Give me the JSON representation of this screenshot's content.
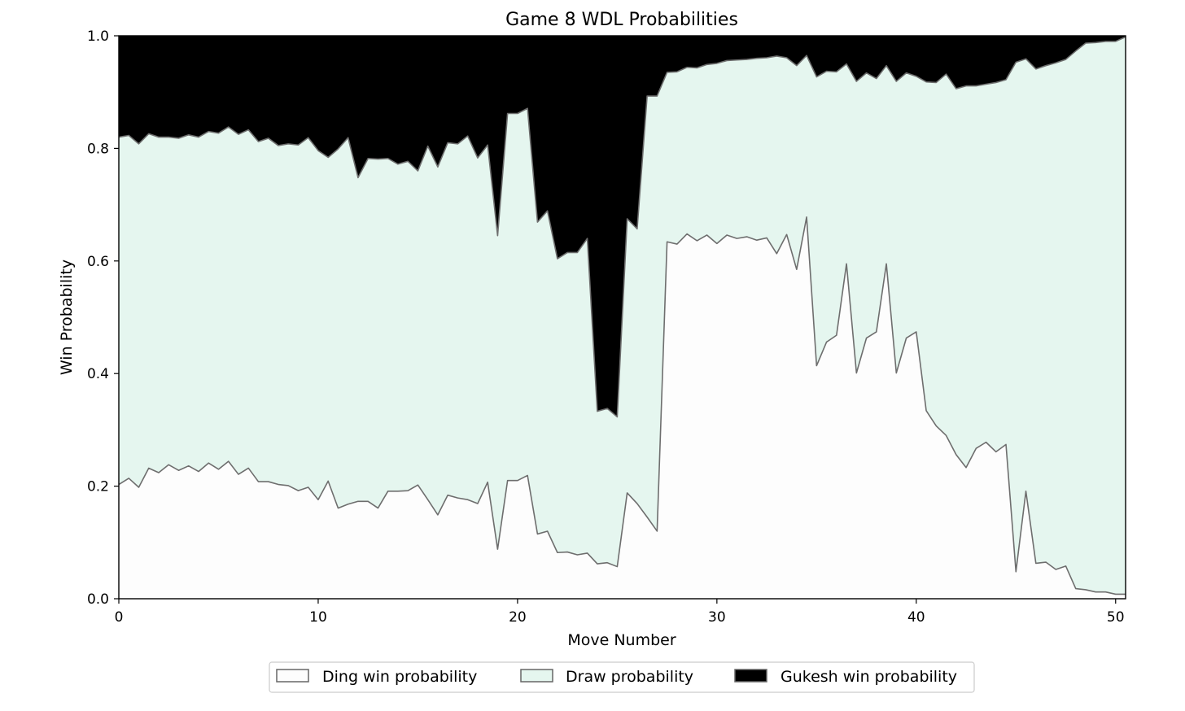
{
  "chart_data": {
    "type": "area",
    "stacked": true,
    "title": "Game 8 WDL Probabilities",
    "xlabel": "Move Number",
    "ylabel": "Win Probability",
    "xlim": [
      0,
      50.5
    ],
    "ylim": [
      0,
      1.0
    ],
    "xticks": [
      0,
      10,
      20,
      30,
      40,
      50
    ],
    "yticks": [
      0.0,
      0.2,
      0.4,
      0.6,
      0.8,
      1.0
    ],
    "xtick_labels": [
      "0",
      "10",
      "20",
      "30",
      "40",
      "50"
    ],
    "ytick_labels": [
      "0.0",
      "0.2",
      "0.4",
      "0.6",
      "0.8",
      "1.0"
    ],
    "grid": false,
    "legend_position": "bottom-center",
    "x": [
      0,
      0.5,
      1,
      1.5,
      2,
      2.5,
      3,
      3.5,
      4,
      4.5,
      5,
      5.5,
      6,
      6.5,
      7,
      7.5,
      8,
      8.5,
      9,
      9.5,
      10,
      10.5,
      11,
      11.5,
      12,
      12.5,
      13,
      13.5,
      14,
      14.5,
      15,
      15.5,
      16,
      16.5,
      17,
      17.5,
      18,
      18.5,
      19,
      19.5,
      20,
      20.5,
      21,
      21.5,
      22,
      22.5,
      23,
      23.5,
      24,
      24.5,
      25,
      25.5,
      26,
      26.5,
      27,
      27.5,
      28,
      28.5,
      29,
      29.5,
      30,
      30.5,
      31,
      31.5,
      32,
      32.5,
      33,
      33.5,
      34,
      34.5,
      35,
      35.5,
      36,
      36.5,
      37,
      37.5,
      38,
      38.5,
      39,
      39.5,
      40,
      40.5,
      41,
      41.5,
      42,
      42.5,
      43,
      43.5,
      44,
      44.5,
      45,
      45.5,
      46,
      46.5,
      47,
      47.5,
      48,
      48.5,
      49,
      49.5,
      50,
      50.5
    ],
    "series": [
      {
        "name": "Ding win probability",
        "color": "#fdfdfd",
        "values": [
          0.203,
          0.214,
          0.198,
          0.232,
          0.224,
          0.238,
          0.228,
          0.236,
          0.226,
          0.241,
          0.23,
          0.244,
          0.221,
          0.232,
          0.208,
          0.208,
          0.203,
          0.201,
          0.192,
          0.198,
          0.176,
          0.209,
          0.161,
          0.168,
          0.173,
          0.173,
          0.161,
          0.191,
          0.191,
          0.192,
          0.202,
          0.176,
          0.149,
          0.184,
          0.179,
          0.176,
          0.169,
          0.207,
          0.088,
          0.21,
          0.21,
          0.219,
          0.115,
          0.12,
          0.082,
          0.083,
          0.078,
          0.081,
          0.062,
          0.064,
          0.057,
          0.188,
          0.169,
          0.145,
          0.12,
          0.634,
          0.63,
          0.648,
          0.636,
          0.646,
          0.631,
          0.646,
          0.64,
          0.643,
          0.637,
          0.641,
          0.613,
          0.647,
          0.585,
          0.678,
          0.414,
          0.456,
          0.468,
          0.595,
          0.401,
          0.463,
          0.474,
          0.595,
          0.401,
          0.463,
          0.474,
          0.334,
          0.307,
          0.29,
          0.256,
          0.233,
          0.267,
          0.278,
          0.261,
          0.274,
          0.048,
          0.191,
          0.063,
          0.065,
          0.052,
          0.058,
          0.018,
          0.016,
          0.012,
          0.012,
          0.008,
          0.008
        ]
      },
      {
        "name": "Draw probability",
        "color": "#e5f6ef",
        "values": [
          0.617,
          0.609,
          0.61,
          0.594,
          0.596,
          0.582,
          0.59,
          0.588,
          0.594,
          0.589,
          0.597,
          0.594,
          0.604,
          0.601,
          0.604,
          0.61,
          0.602,
          0.607,
          0.614,
          0.621,
          0.62,
          0.575,
          0.638,
          0.651,
          0.575,
          0.609,
          0.62,
          0.591,
          0.581,
          0.585,
          0.558,
          0.628,
          0.618,
          0.626,
          0.629,
          0.646,
          0.614,
          0.599,
          0.557,
          0.652,
          0.652,
          0.652,
          0.554,
          0.569,
          0.522,
          0.532,
          0.537,
          0.559,
          0.271,
          0.274,
          0.266,
          0.487,
          0.488,
          0.748,
          0.773,
          0.301,
          0.306,
          0.296,
          0.307,
          0.303,
          0.32,
          0.31,
          0.317,
          0.315,
          0.323,
          0.32,
          0.351,
          0.314,
          0.362,
          0.287,
          0.513,
          0.481,
          0.468,
          0.355,
          0.518,
          0.471,
          0.45,
          0.352,
          0.518,
          0.471,
          0.454,
          0.584,
          0.61,
          0.642,
          0.65,
          0.678,
          0.644,
          0.636,
          0.656,
          0.648,
          0.905,
          0.768,
          0.878,
          0.882,
          0.9,
          0.9,
          0.955,
          0.971,
          0.976,
          0.978,
          0.982,
          0.99
        ]
      },
      {
        "name": "Gukesh win probability",
        "color": "#000000",
        "values": [
          0.18,
          0.177,
          0.192,
          0.174,
          0.18,
          0.18,
          0.182,
          0.176,
          0.18,
          0.17,
          0.173,
          0.162,
          0.175,
          0.167,
          0.188,
          0.182,
          0.195,
          0.192,
          0.194,
          0.181,
          0.204,
          0.216,
          0.201,
          0.181,
          0.252,
          0.218,
          0.219,
          0.218,
          0.228,
          0.223,
          0.24,
          0.196,
          0.233,
          0.19,
          0.192,
          0.178,
          0.217,
          0.194,
          0.355,
          0.138,
          0.138,
          0.129,
          0.331,
          0.311,
          0.396,
          0.385,
          0.385,
          0.36,
          0.667,
          0.662,
          0.677,
          0.325,
          0.343,
          0.107,
          0.107,
          0.065,
          0.064,
          0.056,
          0.057,
          0.051,
          0.049,
          0.044,
          0.043,
          0.042,
          0.04,
          0.039,
          0.036,
          0.039,
          0.053,
          0.035,
          0.073,
          0.063,
          0.064,
          0.05,
          0.081,
          0.066,
          0.076,
          0.053,
          0.081,
          0.066,
          0.072,
          0.082,
          0.083,
          0.068,
          0.094,
          0.089,
          0.089,
          0.086,
          0.083,
          0.078,
          0.047,
          0.041,
          0.059,
          0.053,
          0.048,
          0.042,
          0.027,
          0.013,
          0.012,
          0.01,
          0.01,
          0.002
        ]
      }
    ]
  }
}
